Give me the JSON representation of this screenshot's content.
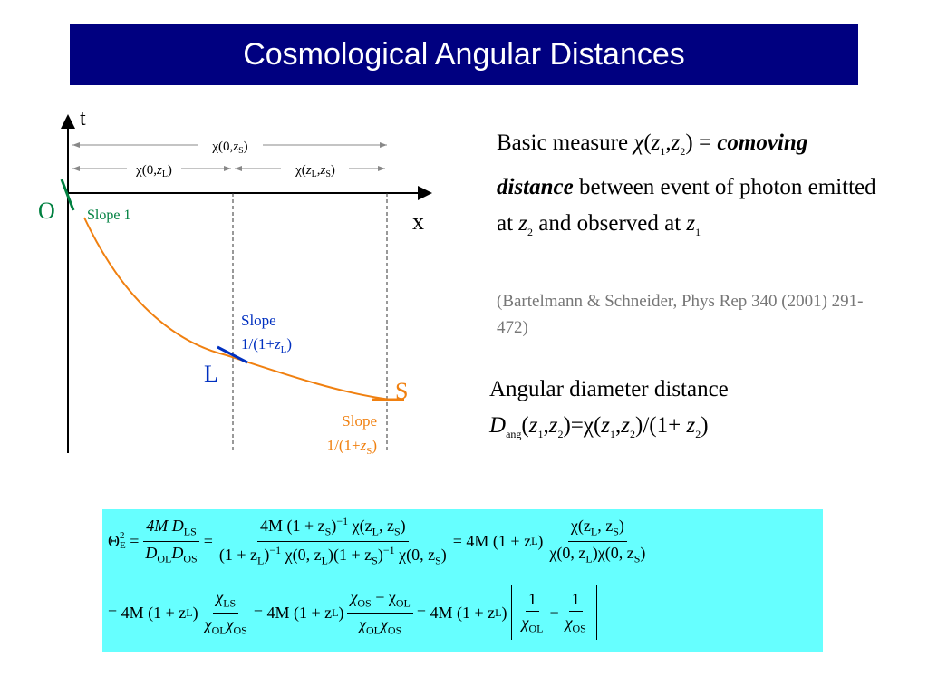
{
  "title": "Cosmological Angular Distances",
  "diagram": {
    "axis_t": "t",
    "axis_x": "x",
    "origin": "O",
    "lens": "L",
    "source": "S",
    "slope_origin": "Slope 1",
    "slope_lens": [
      "Slope",
      "1/(1+",
      "z",
      "L",
      ")"
    ],
    "slope_source": [
      "Slope",
      "1/(1+",
      "z",
      "S",
      ")"
    ],
    "chi_0_zS": [
      "χ(0,",
      "z",
      "S",
      ")"
    ],
    "chi_0_zL": [
      "χ(0,",
      "z",
      "L",
      ")"
    ],
    "chi_zL_zS": [
      "χ(",
      "z",
      "L",
      ",",
      "z",
      "S",
      ")"
    ]
  },
  "text": {
    "basic": [
      "Basic measure ",
      "χ",
      "(",
      "z",
      "1",
      ",",
      "z",
      "2",
      ") =",
      "comoving distance",
      " between event of photon emitted at ",
      "z",
      "2",
      " and observed at ",
      "z",
      "1"
    ],
    "citation": "(Bartelmann & Schneider, Phys Rep 340 (2001) 291-472)",
    "angular": [
      "Angular diameter distance",
      "D",
      "ang",
      "(",
      "z",
      "1",
      ",",
      "z",
      "2",
      ")=χ(",
      "z",
      "1",
      ",",
      "z",
      "2",
      ")/(1+ ",
      "z",
      "2",
      ")"
    ]
  },
  "equation": {
    "row1": [
      "Θ",
      "E",
      "2",
      "=",
      "4M D",
      "LS",
      "D",
      "OL",
      "D",
      "OS",
      "=",
      "4M (1 + z",
      "S",
      ")",
      "−1",
      " χ(z",
      "L",
      ", z",
      "S",
      ")",
      "(1 + z",
      "L",
      ")",
      "−1",
      " χ(0, z",
      "L",
      ")(1 + z",
      "S",
      ")",
      "−1",
      " χ(0, z",
      "S",
      ")",
      "= 4M (1 + z",
      "L",
      ")",
      "χ(z",
      "L",
      ", z",
      "S",
      ")",
      "χ(0, z",
      "L",
      ")χ(0, z",
      "S",
      ")"
    ],
    "row2": [
      "= 4M (1 + z",
      "L",
      ")",
      "χ",
      "LS",
      "χ",
      "OL",
      "χ",
      "OS",
      "= 4M (1 + z",
      "L",
      ")",
      "χ",
      "OS",
      " − χ",
      "OL",
      "χ",
      "OL",
      "χ",
      "OS",
      "= 4M (1 + z",
      "L",
      ")",
      "1",
      "χ",
      "OL",
      "−",
      "1",
      "χ",
      "OS"
    ]
  }
}
